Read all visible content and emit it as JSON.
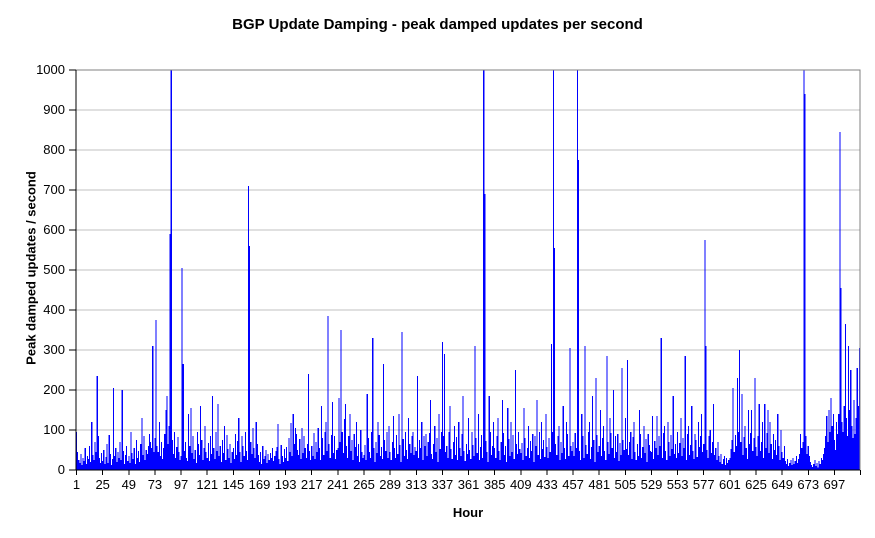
{
  "chart_data": {
    "type": "bar",
    "title": "BGP Update Damping - peak damped updates per second",
    "xlabel": "Hour",
    "ylabel": "Peak damped updates / second",
    "ylim": [
      0,
      1000
    ],
    "y_ticks": [
      0,
      100,
      200,
      300,
      400,
      500,
      600,
      700,
      800,
      900,
      1000
    ],
    "x_tick_labels": [
      1,
      25,
      49,
      73,
      97,
      121,
      145,
      169,
      193,
      217,
      241,
      265,
      289,
      313,
      337,
      361,
      385,
      409,
      433,
      457,
      481,
      505,
      529,
      553,
      577,
      601,
      625,
      649,
      673,
      697
    ],
    "x_tick_step": 24,
    "grid": "horizontal",
    "legend": "none",
    "colors": {
      "bar": "#0000ff",
      "gridline": "#c0c0c0",
      "plot_border": "#808080",
      "axis": "#000000",
      "text": "#000000",
      "background": "#ffffff"
    },
    "series": [
      {
        "name": "peak damped updates per second",
        "values": [
          95,
          45,
          25,
          18,
          40,
          12,
          30,
          22,
          55,
          15,
          35,
          28,
          60,
          20,
          120,
          38,
          25,
          70,
          45,
          235,
          85,
          30,
          18,
          42,
          22,
          50,
          15,
          33,
          65,
          18,
          88,
          40,
          12,
          28,
          205,
          35,
          55,
          20,
          45,
          30,
          70,
          25,
          200,
          48,
          15,
          38,
          60,
          22,
          35,
          18,
          95,
          42,
          28,
          55,
          15,
          75,
          30,
          48,
          20,
          65,
          130,
          38,
          85,
          25,
          50,
          40,
          60,
          90,
          70,
          55,
          310,
          45,
          80,
          375,
          60,
          45,
          120,
          35,
          70,
          28,
          55,
          90,
          150,
          185,
          65,
          110,
          590,
          1000,
          75,
          40,
          95,
          30,
          58,
          82,
          45,
          25,
          35,
          505,
          265,
          48,
          70,
          30,
          22,
          140,
          60,
          155,
          42,
          85,
          28,
          50,
          18,
          95,
          65,
          38,
          160,
          75,
          25,
          55,
          110,
          45,
          30,
          68,
          22,
          85,
          40,
          185,
          55,
          28,
          95,
          48,
          165,
          35,
          60,
          20,
          75,
          42,
          110,
          25,
          88,
          52,
          30,
          65,
          18,
          45,
          55,
          28,
          90,
          38,
          72,
          130,
          45,
          20,
          85,
          60,
          35,
          95,
          48,
          25,
          710,
          560,
          70,
          40,
          105,
          55,
          30,
          120,
          65,
          38,
          20,
          45,
          15,
          60,
          28,
          35,
          50,
          18,
          40,
          25,
          42,
          30,
          55,
          22,
          35,
          48,
          58,
          115,
          28,
          15,
          62,
          35,
          20,
          52,
          30,
          58,
          22,
          80,
          45,
          118,
          35,
          140,
          65,
          105,
          90,
          50,
          38,
          78,
          28,
          105,
          42,
          85,
          55,
          30,
          65,
          240,
          48,
          25,
          60,
          35,
          92,
          28,
          70,
          45,
          105,
          55,
          25,
          160,
          80,
          38,
          95,
          120,
          48,
          385,
          65,
          30,
          88,
          170,
          42,
          85,
          28,
          50,
          55,
          180,
          70,
          350,
          95,
          42,
          128,
          165,
          60,
          30,
          85,
          140,
          48,
          75,
          25,
          90,
          58,
          120,
          35,
          65,
          20,
          100,
          45,
          30,
          38,
          62,
          25,
          190,
          80,
          45,
          30,
          95,
          330,
          55,
          20,
          70,
          42,
          120,
          88,
          35,
          58,
          28,
          265,
          75,
          48,
          95,
          30,
          110,
          45,
          25,
          70,
          135,
          55,
          30,
          88,
          40,
          140,
          62,
          20,
          345,
          78,
          35,
          95,
          50,
          28,
          130,
          65,
          42,
          85,
          95,
          38,
          58,
          48,
          235,
          30,
          75,
          55,
          120,
          25,
          85,
          60,
          90,
          35,
          70,
          92,
          175,
          40,
          28,
          65,
          110,
          45,
          80,
          20,
          140,
          52,
          95,
          320,
          85,
          290,
          45,
          60,
          30,
          95,
          160,
          52,
          28,
          70,
          110,
          38,
          82,
          25,
          120,
          55,
          35,
          90,
          185,
          48,
          22,
          65,
          40,
          130,
          50,
          28,
          95,
          62,
          35,
          310,
          80,
          42,
          140,
          25,
          58,
          88,
          30,
          1000,
          690,
          72,
          45,
          20,
          185,
          95,
          38,
          60,
          120,
          55,
          30,
          85,
          130,
          48,
          25,
          70,
          175,
          92,
          38,
          60,
          20,
          155,
          78,
          35,
          120,
          45,
          88,
          28,
          250,
          65,
          40,
          95,
          52,
          42,
          68,
          25,
          155,
          80,
          35,
          55,
          110,
          30,
          72,
          48,
          90,
          20,
          85,
          60,
          175,
          38,
          95,
          28,
          120,
          52,
          75,
          32,
          140,
          58,
          30,
          80,
          45,
          315,
          95,
          1000,
          555,
          65,
          38,
          85,
          110,
          25,
          70,
          42,
          160,
          55,
          28,
          120,
          90,
          35,
          305,
          60,
          48,
          70,
          35,
          92,
          55,
          1000,
          775,
          48,
          25,
          140,
          85,
          30,
          310,
          62,
          40,
          95,
          120,
          28,
          58,
          185,
          75,
          20,
          230,
          88,
          45,
          60,
          150,
          35,
          80,
          110,
          48,
          25,
          285,
          70,
          40,
          130,
          92,
          55,
          200,
          30,
          85,
          45,
          90,
          22,
          68,
          38,
          255,
          75,
          50,
          130,
          52,
          275,
          38,
          70,
          95,
          28,
          82,
          120,
          45,
          25,
          65,
          35,
          150,
          90,
          30,
          58,
          110,
          42,
          78,
          20,
          90,
          62,
          48,
          45,
          135,
          28,
          72,
          55,
          135,
          38,
          85,
          60,
          330,
          30,
          92,
          110,
          48,
          25,
          120,
          70,
          35,
          88,
          52,
          185,
          40,
          65,
          30,
          95,
          42,
          68,
          130,
          35,
          80,
          55,
          285,
          25,
          90,
          110,
          38,
          62,
          160,
          48,
          28,
          90,
          75,
          32,
          120,
          58,
          85,
          140,
          45,
          65,
          575,
          310,
          50,
          30,
          85,
          100,
          42,
          70,
          165,
          38,
          55,
          25,
          70,
          35,
          20,
          40,
          15,
          28,
          35,
          12,
          30,
          18,
          25,
          30,
          52,
          75,
          205,
          45,
          88,
          60,
          230,
          95,
          300,
          70,
          190,
          38,
          82,
          110,
          55,
          28,
          150,
          65,
          92,
          150,
          48,
          80,
          230,
          58,
          35,
          85,
          165,
          48,
          70,
          120,
          30,
          165,
          55,
          92,
          150,
          42,
          120,
          65,
          28,
          90,
          50,
          75,
          38,
          140,
          60,
          25,
          100,
          45,
          30,
          60,
          22,
          15,
          28,
          10,
          18,
          25,
          12,
          30,
          15,
          22,
          35,
          18,
          28,
          40,
          90,
          55,
          70,
          1000,
          940,
          85,
          40,
          60,
          35,
          20,
          12,
          8,
          15,
          25,
          10,
          18,
          6,
          22,
          15,
          30,
          25,
          40,
          55,
          85,
          135,
          70,
          150,
          95,
          180,
          110,
          140,
          75,
          50,
          120,
          90,
          140,
          845,
          455,
          120,
          95,
          160,
          365,
          130,
          85,
          310,
          150,
          250,
          110,
          80,
          175,
          90,
          130,
          255,
          160,
          305
        ]
      }
    ]
  }
}
